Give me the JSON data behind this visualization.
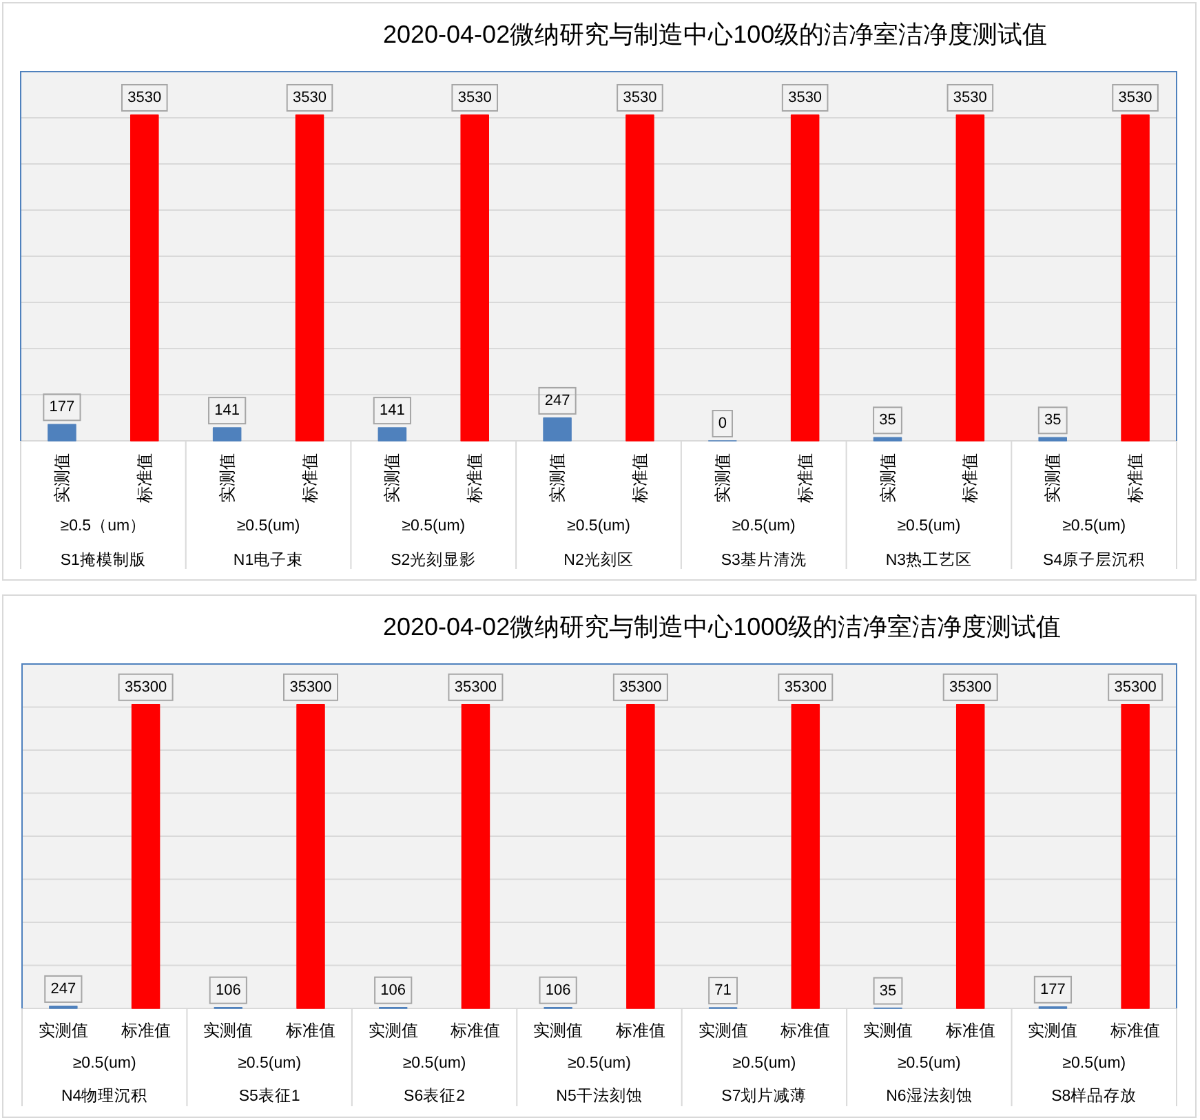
{
  "chart_data": [
    {
      "type": "bar",
      "title": "2020-04-02微纳研究与制造中心100级的洁净室洁净度测试值",
      "categories": [
        "≥0.5（um）\nS1掩模制版",
        "≥0.5(um)\nN1电子束",
        "≥0.5(um)\nS2光刻显影",
        "≥0.5(um)\nN2光刻区",
        "≥0.5(um)\nS3基片清洗",
        "≥0.5(um)\nN3热工艺区",
        "≥0.5(um)\nS4原子层沉积"
      ],
      "series": [
        {
          "name": "实测值",
          "color": "#4f81bd",
          "values": [
            177,
            141,
            141,
            247,
            0,
            35,
            35
          ]
        },
        {
          "name": "标准值",
          "color": "#ff0000",
          "values": [
            3530,
            3530,
            3530,
            3530,
            3530,
            3530,
            3530
          ]
        }
      ],
      "ylim": [
        0,
        4000
      ],
      "yticks": [
        0,
        500,
        1000,
        1500,
        2000,
        2500,
        3000,
        3500,
        4000
      ],
      "tick_labels": "x",
      "grid": "y",
      "data_labels": true
    },
    {
      "type": "bar",
      "title": "2020-04-02微纳研究与制造中心1000级的洁净室洁净度测试值",
      "categories": [
        "≥0.5(um)\nN4物理沉积",
        "≥0.5(um)\nS5表征1",
        "≥0.5(um)\nS6表征2",
        "≥0.5(um)\nN5干法刻蚀",
        "≥0.5(um)\nS7划片减薄",
        "≥0.5(um)\nN6湿法刻蚀",
        "≥0.5(um)\nS8样品存放"
      ],
      "series": [
        {
          "name": "实测值",
          "color": "#4f81bd",
          "values": [
            247,
            106,
            106,
            106,
            71,
            35,
            177
          ]
        },
        {
          "name": "标准值",
          "color": "#ff0000",
          "values": [
            35300,
            35300,
            35300,
            35300,
            35300,
            35300,
            35300
          ]
        }
      ],
      "ylim": [
        0,
        40000
      ],
      "yticks": [
        0,
        5000,
        10000,
        15000,
        20000,
        25000,
        30000,
        35000,
        40000
      ],
      "tick_labels": "x",
      "grid": "y",
      "data_labels": true
    }
  ]
}
